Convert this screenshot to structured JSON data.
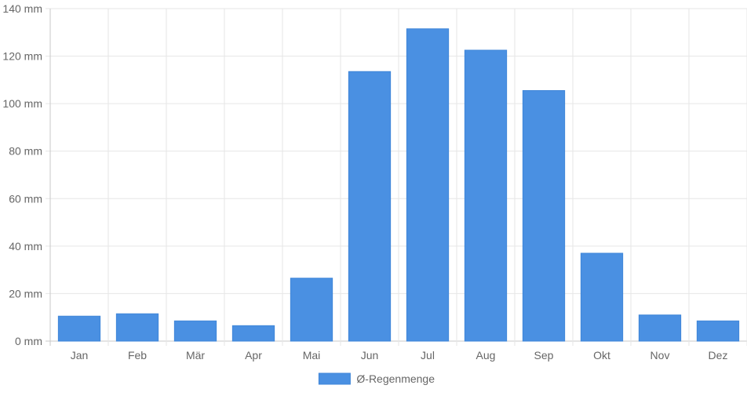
{
  "chart_data": {
    "type": "bar",
    "categories": [
      "Jan",
      "Feb",
      "Mär",
      "Apr",
      "Mai",
      "Jun",
      "Jul",
      "Aug",
      "Sep",
      "Okt",
      "Nov",
      "Dez"
    ],
    "series": [
      {
        "name": "Ø-Regenmenge",
        "values": [
          10.5,
          11.5,
          8.5,
          6.5,
          26.5,
          113.5,
          131.5,
          122.5,
          105.5,
          37.0,
          11.0,
          8.5
        ]
      }
    ],
    "title": "",
    "xlabel": "",
    "ylabel": "",
    "ylim": [
      0,
      140
    ],
    "yticks": [
      0,
      20,
      40,
      60,
      80,
      100,
      120,
      140
    ],
    "y_unit": "mm",
    "grid": true,
    "legend_position": "bottom",
    "colors": {
      "bar": "#4a90e2",
      "grid": "#e6e6e6",
      "text": "#666666"
    }
  }
}
